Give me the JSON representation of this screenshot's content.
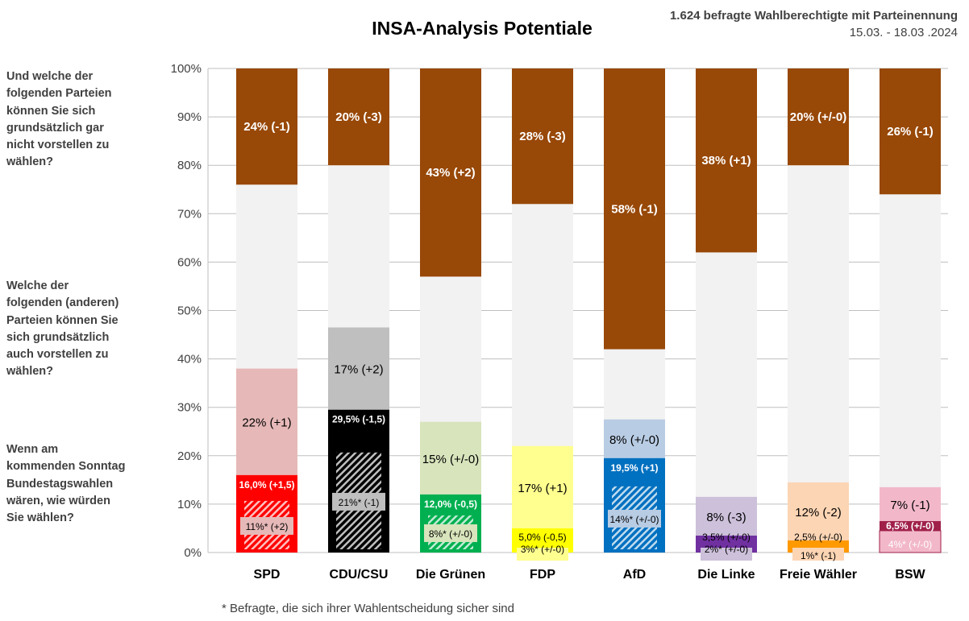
{
  "chart_data": {
    "type": "stacked-bar",
    "title": "INSA-Analysis Potentiale",
    "subtitle_line1": "1.624 befragte Wahlberechtigte mit Parteinennung",
    "subtitle_line2": "15.03. - 18.03 .2024",
    "footnote": "* Befragte, die sich ihrer Wahlentscheidung sicher sind",
    "ylim": [
      0,
      100
    ],
    "y_ticks": [
      "0%",
      "10%",
      "20%",
      "30%",
      "40%",
      "50%",
      "60%",
      "70%",
      "80%",
      "90%",
      "100%"
    ],
    "grid": true,
    "row_labels": {
      "never": "Und welche der folgenden Parteien können Sie sich grundsätzlich gar nicht vorstellen zu wählen?",
      "potential": "Welche der folgenden (anderen) Parteien können Sie sich grundsätzlich auch vorstellen zu wählen?",
      "vote": "Wenn am kommenden Sonntag Bundestagswahlen wären, wie würden Sie wählen?"
    },
    "colors": {
      "never": "#984807",
      "rest": "#F2F2F2"
    },
    "categories": [
      "SPD",
      "CDU/CSU",
      "Die Grünen",
      "FDP",
      "AfD",
      "Die Linke",
      "Freie Wähler",
      "BSW"
    ],
    "parties": [
      {
        "name": "SPD",
        "vote": 16.0,
        "vote_label": "16,0% (+1,5)",
        "sure": 11,
        "sure_label": "11%* (+2)",
        "potential": 22,
        "potential_label": "22% (+1)",
        "never": 24,
        "never_label": "24% (-1)",
        "color": "#FF0000",
        "light": "#E6B9B8"
      },
      {
        "name": "CDU/CSU",
        "vote": 29.5,
        "vote_label": "29,5% (-1,5)",
        "sure": 21,
        "sure_label": "21%* (-1)",
        "potential": 17,
        "potential_label": "17% (+2)",
        "never": 20,
        "never_label": "20% (-3)",
        "color": "#000000",
        "light": "#BFBFBF"
      },
      {
        "name": "Die Grünen",
        "vote": 12.0,
        "vote_label": "12,0% (-0,5)",
        "sure": 8,
        "sure_label": "8%* (+/-0)",
        "potential": 15,
        "potential_label": "15% (+/-0)",
        "never": 43,
        "never_label": "43% (+2)",
        "color": "#00B050",
        "light": "#D8E4BC"
      },
      {
        "name": "FDP",
        "vote": 5.0,
        "vote_label": "5,0% (-0,5)",
        "sure": 3,
        "sure_label": "3%* (+/-0)",
        "potential": 17,
        "potential_label": "17% (+1)",
        "never": 28,
        "never_label": "28% (-3)",
        "color": "#FFFF00",
        "light": "#FFFF8F"
      },
      {
        "name": "AfD",
        "vote": 19.5,
        "vote_label": "19,5% (+1)",
        "sure": 14,
        "sure_label": "14%* (+/-0)",
        "potential": 8,
        "potential_label": "8% (+/-0)",
        "never": 58,
        "never_label": "58% (-1)",
        "color": "#0070C0",
        "light": "#B8CCE4"
      },
      {
        "name": "Die Linke",
        "vote": 3.5,
        "vote_label": "3,5% (+/-0)",
        "sure": 2,
        "sure_label": "2%* (+/-0)",
        "potential": 8,
        "potential_label": "8% (-3)",
        "never": 38,
        "never_label": "38% (+1)",
        "color": "#7030A0",
        "light": "#CCC0DA"
      },
      {
        "name": "Freie Wähler",
        "vote": 2.5,
        "vote_label": "2,5% (+/-0)",
        "sure": 1,
        "sure_label": "1%* (-1)",
        "potential": 12,
        "potential_label": "12% (-2)",
        "never": 20,
        "never_label": "20% (+/-0)",
        "color": "#FF9900",
        "light": "#FCD5B4"
      },
      {
        "name": "BSW",
        "vote": 6.5,
        "vote_label": "6,5% (+/-0)",
        "sure": 4,
        "sure_label": "4%* (+/-0)",
        "potential": 7,
        "potential_label": "7% (-1)",
        "never": 26,
        "never_label": "26% (-1)",
        "color": "#A0204A",
        "light": "#F2B8CA"
      }
    ]
  }
}
